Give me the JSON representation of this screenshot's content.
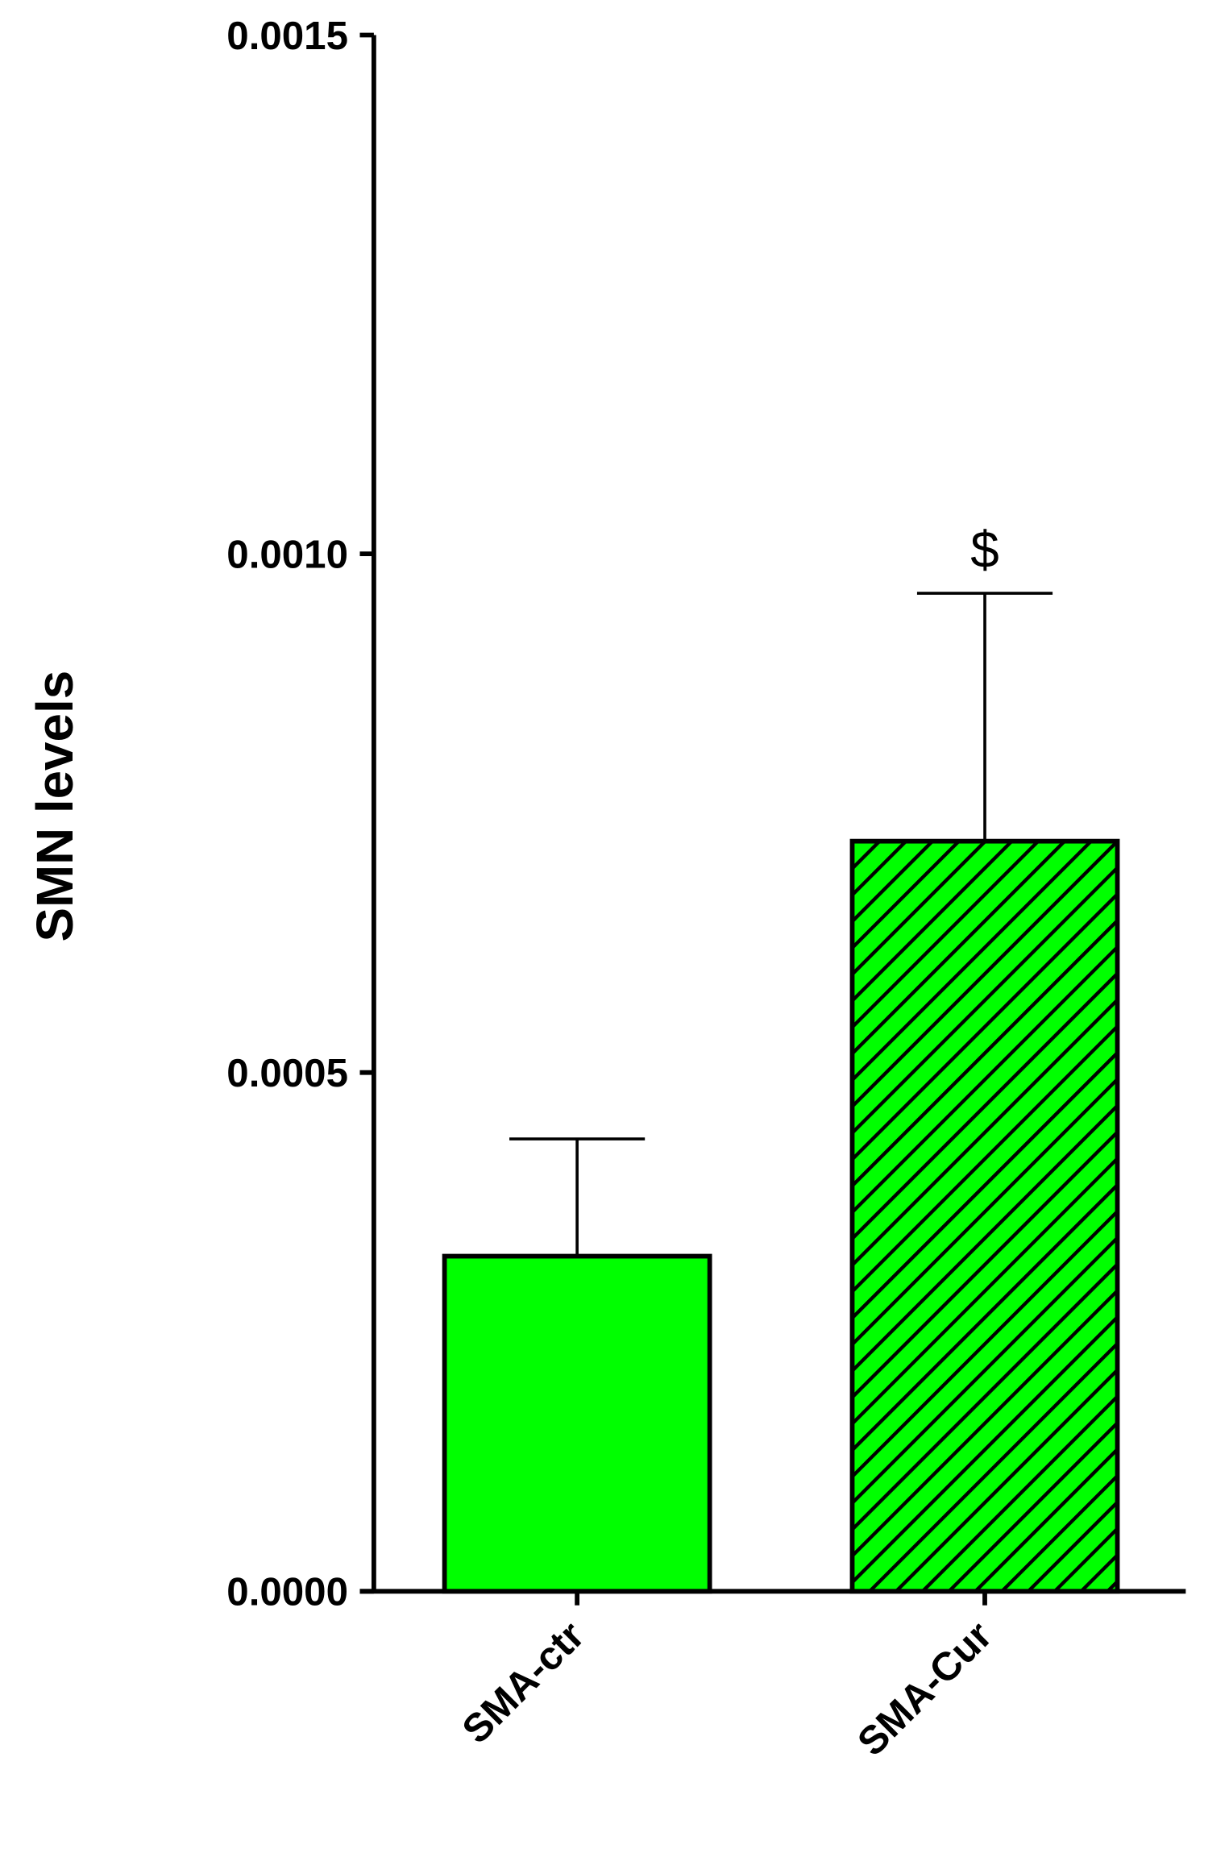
{
  "chart_data": {
    "type": "bar",
    "y_label": "SMN levels",
    "categories": [
      "SMA-ctr",
      "SMA-Cur"
    ],
    "values": [
      0.000323,
      0.000723
    ],
    "errors": [
      0.000113,
      0.000239
    ],
    "colors": [
      "#00ff00",
      "#00ff00"
    ],
    "hatch": [
      false,
      true
    ],
    "ylim": [
      0,
      0.0015
    ],
    "yticks": [
      {
        "value": 0,
        "label": "0.0000"
      },
      {
        "value": 0.0005,
        "label": "0.0005"
      },
      {
        "value": 0.001,
        "label": "0.0010"
      },
      {
        "value": 0.0015,
        "label": "0.0015"
      }
    ],
    "annotations": [
      {
        "text": "$",
        "category": 1
      }
    ]
  }
}
